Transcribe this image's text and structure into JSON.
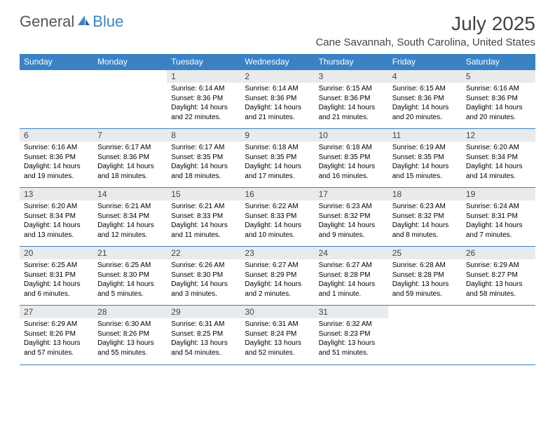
{
  "brand": {
    "part1": "General",
    "part2": "Blue"
  },
  "title": "July 2025",
  "location": "Cane Savannah, South Carolina, United States",
  "colors": {
    "accent": "#3b82c4",
    "header_bg": "#e8eaec",
    "text": "#000000",
    "muted": "#555555"
  },
  "days_of_week": [
    "Sunday",
    "Monday",
    "Tuesday",
    "Wednesday",
    "Thursday",
    "Friday",
    "Saturday"
  ],
  "weeks": [
    [
      null,
      null,
      {
        "n": "1",
        "sr": "Sunrise: 6:14 AM",
        "ss": "Sunset: 8:36 PM",
        "dl": "Daylight: 14 hours and 22 minutes."
      },
      {
        "n": "2",
        "sr": "Sunrise: 6:14 AM",
        "ss": "Sunset: 8:36 PM",
        "dl": "Daylight: 14 hours and 21 minutes."
      },
      {
        "n": "3",
        "sr": "Sunrise: 6:15 AM",
        "ss": "Sunset: 8:36 PM",
        "dl": "Daylight: 14 hours and 21 minutes."
      },
      {
        "n": "4",
        "sr": "Sunrise: 6:15 AM",
        "ss": "Sunset: 8:36 PM",
        "dl": "Daylight: 14 hours and 20 minutes."
      },
      {
        "n": "5",
        "sr": "Sunrise: 6:16 AM",
        "ss": "Sunset: 8:36 PM",
        "dl": "Daylight: 14 hours and 20 minutes."
      }
    ],
    [
      {
        "n": "6",
        "sr": "Sunrise: 6:16 AM",
        "ss": "Sunset: 8:36 PM",
        "dl": "Daylight: 14 hours and 19 minutes."
      },
      {
        "n": "7",
        "sr": "Sunrise: 6:17 AM",
        "ss": "Sunset: 8:36 PM",
        "dl": "Daylight: 14 hours and 18 minutes."
      },
      {
        "n": "8",
        "sr": "Sunrise: 6:17 AM",
        "ss": "Sunset: 8:35 PM",
        "dl": "Daylight: 14 hours and 18 minutes."
      },
      {
        "n": "9",
        "sr": "Sunrise: 6:18 AM",
        "ss": "Sunset: 8:35 PM",
        "dl": "Daylight: 14 hours and 17 minutes."
      },
      {
        "n": "10",
        "sr": "Sunrise: 6:18 AM",
        "ss": "Sunset: 8:35 PM",
        "dl": "Daylight: 14 hours and 16 minutes."
      },
      {
        "n": "11",
        "sr": "Sunrise: 6:19 AM",
        "ss": "Sunset: 8:35 PM",
        "dl": "Daylight: 14 hours and 15 minutes."
      },
      {
        "n": "12",
        "sr": "Sunrise: 6:20 AM",
        "ss": "Sunset: 8:34 PM",
        "dl": "Daylight: 14 hours and 14 minutes."
      }
    ],
    [
      {
        "n": "13",
        "sr": "Sunrise: 6:20 AM",
        "ss": "Sunset: 8:34 PM",
        "dl": "Daylight: 14 hours and 13 minutes."
      },
      {
        "n": "14",
        "sr": "Sunrise: 6:21 AM",
        "ss": "Sunset: 8:34 PM",
        "dl": "Daylight: 14 hours and 12 minutes."
      },
      {
        "n": "15",
        "sr": "Sunrise: 6:21 AM",
        "ss": "Sunset: 8:33 PM",
        "dl": "Daylight: 14 hours and 11 minutes."
      },
      {
        "n": "16",
        "sr": "Sunrise: 6:22 AM",
        "ss": "Sunset: 8:33 PM",
        "dl": "Daylight: 14 hours and 10 minutes."
      },
      {
        "n": "17",
        "sr": "Sunrise: 6:23 AM",
        "ss": "Sunset: 8:32 PM",
        "dl": "Daylight: 14 hours and 9 minutes."
      },
      {
        "n": "18",
        "sr": "Sunrise: 6:23 AM",
        "ss": "Sunset: 8:32 PM",
        "dl": "Daylight: 14 hours and 8 minutes."
      },
      {
        "n": "19",
        "sr": "Sunrise: 6:24 AM",
        "ss": "Sunset: 8:31 PM",
        "dl": "Daylight: 14 hours and 7 minutes."
      }
    ],
    [
      {
        "n": "20",
        "sr": "Sunrise: 6:25 AM",
        "ss": "Sunset: 8:31 PM",
        "dl": "Daylight: 14 hours and 6 minutes."
      },
      {
        "n": "21",
        "sr": "Sunrise: 6:25 AM",
        "ss": "Sunset: 8:30 PM",
        "dl": "Daylight: 14 hours and 5 minutes."
      },
      {
        "n": "22",
        "sr": "Sunrise: 6:26 AM",
        "ss": "Sunset: 8:30 PM",
        "dl": "Daylight: 14 hours and 3 minutes."
      },
      {
        "n": "23",
        "sr": "Sunrise: 6:27 AM",
        "ss": "Sunset: 8:29 PM",
        "dl": "Daylight: 14 hours and 2 minutes."
      },
      {
        "n": "24",
        "sr": "Sunrise: 6:27 AM",
        "ss": "Sunset: 8:28 PM",
        "dl": "Daylight: 14 hours and 1 minute."
      },
      {
        "n": "25",
        "sr": "Sunrise: 6:28 AM",
        "ss": "Sunset: 8:28 PM",
        "dl": "Daylight: 13 hours and 59 minutes."
      },
      {
        "n": "26",
        "sr": "Sunrise: 6:29 AM",
        "ss": "Sunset: 8:27 PM",
        "dl": "Daylight: 13 hours and 58 minutes."
      }
    ],
    [
      {
        "n": "27",
        "sr": "Sunrise: 6:29 AM",
        "ss": "Sunset: 8:26 PM",
        "dl": "Daylight: 13 hours and 57 minutes."
      },
      {
        "n": "28",
        "sr": "Sunrise: 6:30 AM",
        "ss": "Sunset: 8:26 PM",
        "dl": "Daylight: 13 hours and 55 minutes."
      },
      {
        "n": "29",
        "sr": "Sunrise: 6:31 AM",
        "ss": "Sunset: 8:25 PM",
        "dl": "Daylight: 13 hours and 54 minutes."
      },
      {
        "n": "30",
        "sr": "Sunrise: 6:31 AM",
        "ss": "Sunset: 8:24 PM",
        "dl": "Daylight: 13 hours and 52 minutes."
      },
      {
        "n": "31",
        "sr": "Sunrise: 6:32 AM",
        "ss": "Sunset: 8:23 PM",
        "dl": "Daylight: 13 hours and 51 minutes."
      },
      null,
      null
    ]
  ]
}
